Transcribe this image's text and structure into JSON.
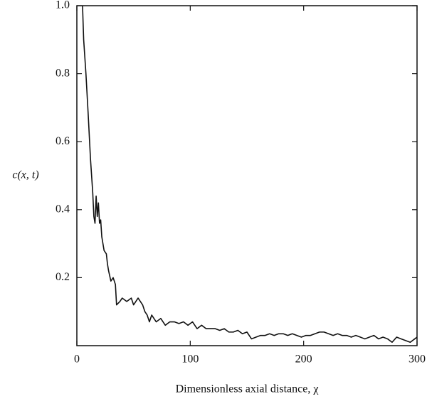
{
  "chart_data": {
    "type": "line",
    "xlabel": "Dimensionless axial distance, χ",
    "ylabel": "c(x, t)",
    "xlim": [
      0,
      300
    ],
    "ylim": [
      0,
      1
    ],
    "xticks": [
      0,
      100,
      200,
      300
    ],
    "yticks": [
      0.2,
      0.4,
      0.6,
      0.8,
      {
        "value": 1,
        "label": "1.0"
      }
    ],
    "series": [
      {
        "color": "#111111",
        "x": [
          5,
          6,
          8,
          10,
          12,
          14,
          15,
          16,
          17,
          18,
          19,
          20,
          21,
          22,
          24,
          26,
          27,
          28,
          30,
          32,
          34,
          35,
          38,
          40,
          44,
          48,
          50,
          54,
          58,
          60,
          62,
          64,
          66,
          68,
          70,
          74,
          78,
          82,
          86,
          90,
          94,
          98,
          102,
          106,
          110,
          114,
          118,
          122,
          126,
          130,
          134,
          138,
          142,
          146,
          150,
          154,
          158,
          162,
          166,
          170,
          174,
          178,
          182,
          186,
          190,
          194,
          198,
          202,
          206,
          210,
          214,
          218,
          222,
          226,
          230,
          234,
          238,
          242,
          246,
          250,
          254,
          258,
          262,
          266,
          270,
          274,
          278,
          282,
          286,
          290,
          294,
          298,
          300
        ],
        "values": [
          1.0,
          0.9,
          0.8,
          0.68,
          0.55,
          0.45,
          0.38,
          0.36,
          0.44,
          0.38,
          0.42,
          0.36,
          0.37,
          0.32,
          0.28,
          0.27,
          0.24,
          0.22,
          0.19,
          0.2,
          0.18,
          0.12,
          0.13,
          0.14,
          0.13,
          0.14,
          0.12,
          0.14,
          0.12,
          0.1,
          0.09,
          0.07,
          0.09,
          0.08,
          0.07,
          0.08,
          0.06,
          0.07,
          0.07,
          0.065,
          0.07,
          0.06,
          0.07,
          0.05,
          0.06,
          0.05,
          0.05,
          0.05,
          0.045,
          0.05,
          0.04,
          0.04,
          0.045,
          0.035,
          0.04,
          0.02,
          0.025,
          0.03,
          0.03,
          0.035,
          0.03,
          0.035,
          0.035,
          0.03,
          0.035,
          0.03,
          0.025,
          0.03,
          0.03,
          0.035,
          0.04,
          0.04,
          0.035,
          0.03,
          0.035,
          0.03,
          0.03,
          0.025,
          0.03,
          0.025,
          0.02,
          0.025,
          0.03,
          0.02,
          0.025,
          0.02,
          0.01,
          0.025,
          0.02,
          0.015,
          0.01,
          0.02,
          0.025
        ]
      }
    ]
  }
}
